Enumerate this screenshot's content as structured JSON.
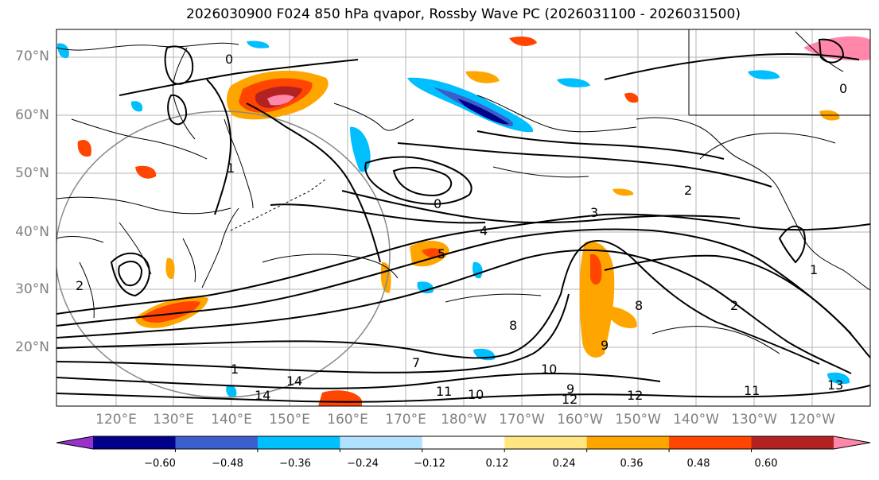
{
  "title": "2026030900 F024 850 hPa qvapor, Rossby Wave PC (2026031100 - 2026031500)",
  "lat_labels": [
    "70°N",
    "60°N",
    "50°N",
    "40°N",
    "30°N",
    "20°N"
  ],
  "lon_labels": [
    "120°E",
    "130°E",
    "140°E",
    "150°E",
    "160°E",
    "170°E",
    "180°W",
    "170°W",
    "160°W",
    "150°W",
    "140°W",
    "130°W",
    "120°W"
  ],
  "colorbar": {
    "ticks": [
      "−0.60",
      "−0.48",
      "−0.36",
      "−0.24",
      "−0.12",
      "0.12",
      "0.24",
      "0.36",
      "0.48",
      "0.60"
    ],
    "colors": [
      "#9932cc",
      "#00008b",
      "#3a5fcd",
      "#00bfff",
      "#b0e2ff",
      "#ffffff",
      "#ffe680",
      "#ffa500",
      "#ff4500",
      "#b22222",
      "#ff88aa"
    ]
  },
  "contour_labels": [
    "2",
    "3",
    "4",
    "5",
    "2",
    "1",
    "1",
    "2",
    "7",
    "8",
    "10",
    "9",
    "12",
    "11",
    "14",
    "11",
    "10",
    "12",
    "14",
    "13",
    "8",
    "9",
    "0",
    "0",
    "1",
    "0"
  ]
}
